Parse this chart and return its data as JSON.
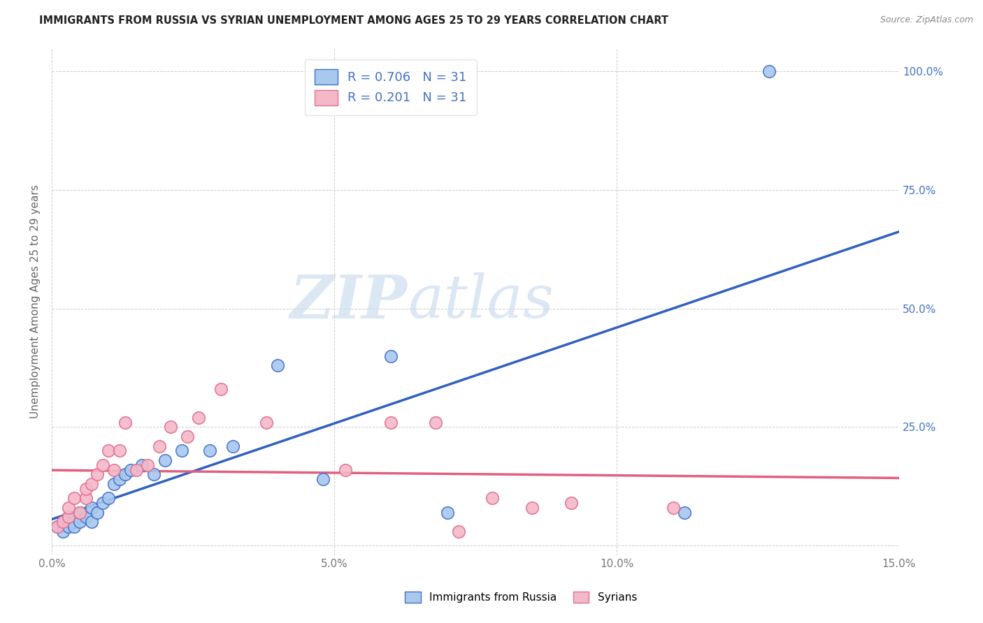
{
  "title": "IMMIGRANTS FROM RUSSIA VS SYRIAN UNEMPLOYMENT AMONG AGES 25 TO 29 YEARS CORRELATION CHART",
  "source": "Source: ZipAtlas.com",
  "xlabel": "",
  "ylabel": "Unemployment Among Ages 25 to 29 years",
  "r_russia": 0.706,
  "n_russia": 31,
  "r_syrians": 0.201,
  "n_syrians": 31,
  "xlim": [
    0.0,
    0.15
  ],
  "ylim": [
    -0.02,
    1.05
  ],
  "xticks": [
    0.0,
    0.05,
    0.1,
    0.15
  ],
  "xticklabels": [
    "0.0%",
    "5.0%",
    "10.0%",
    "15.0%"
  ],
  "yticks_left": [
    0.0,
    0.25,
    0.5,
    0.75,
    1.0
  ],
  "yticklabels_left": [
    "",
    "",
    "",
    "",
    ""
  ],
  "yticks_right": [
    0.0,
    0.25,
    0.5,
    0.75,
    1.0
  ],
  "yticklabels_right": [
    "",
    "25.0%",
    "50.0%",
    "75.0%",
    "100.0%"
  ],
  "color_russia": "#a8c8f0",
  "color_syrians": "#f4b8c8",
  "color_russia_line": "#3060c0",
  "color_syrians_line": "#e06080",
  "color_russia_edge": "#4472c4",
  "color_syrians_edge": "#e07090",
  "color_right_axis": "#4472c4",
  "russia_x": [
    0.001,
    0.002,
    0.002,
    0.003,
    0.003,
    0.004,
    0.004,
    0.005,
    0.005,
    0.006,
    0.007,
    0.007,
    0.008,
    0.009,
    0.01,
    0.011,
    0.012,
    0.013,
    0.014,
    0.016,
    0.018,
    0.02,
    0.023,
    0.028,
    0.032,
    0.04,
    0.048,
    0.06,
    0.07,
    0.112,
    0.127
  ],
  "russia_y": [
    0.04,
    0.03,
    0.05,
    0.04,
    0.06,
    0.05,
    0.04,
    0.05,
    0.07,
    0.06,
    0.05,
    0.08,
    0.07,
    0.09,
    0.1,
    0.13,
    0.14,
    0.15,
    0.16,
    0.17,
    0.15,
    0.18,
    0.2,
    0.2,
    0.21,
    0.38,
    0.14,
    0.4,
    0.07,
    0.07,
    1.0
  ],
  "syrians_x": [
    0.001,
    0.002,
    0.003,
    0.003,
    0.004,
    0.005,
    0.006,
    0.006,
    0.007,
    0.008,
    0.009,
    0.01,
    0.011,
    0.012,
    0.013,
    0.015,
    0.017,
    0.019,
    0.021,
    0.024,
    0.026,
    0.03,
    0.038,
    0.052,
    0.06,
    0.068,
    0.072,
    0.078,
    0.085,
    0.092,
    0.11
  ],
  "syrians_y": [
    0.04,
    0.05,
    0.06,
    0.08,
    0.1,
    0.07,
    0.1,
    0.12,
    0.13,
    0.15,
    0.17,
    0.2,
    0.16,
    0.2,
    0.26,
    0.16,
    0.17,
    0.21,
    0.25,
    0.23,
    0.27,
    0.33,
    0.26,
    0.16,
    0.26,
    0.26,
    0.03,
    0.1,
    0.08,
    0.09,
    0.08
  ],
  "watermark_zip": "ZIP",
  "watermark_atlas": "atlas",
  "background_color": "#ffffff",
  "grid_color": "#cccccc"
}
